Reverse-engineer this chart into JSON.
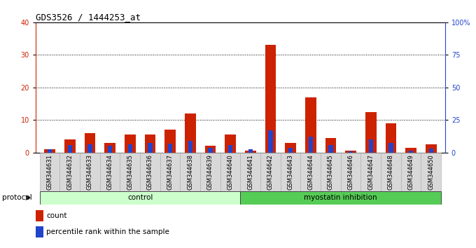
{
  "title": "GDS3526 / 1444253_at",
  "samples": [
    "GSM344631",
    "GSM344632",
    "GSM344633",
    "GSM344634",
    "GSM344635",
    "GSM344636",
    "GSM344637",
    "GSM344638",
    "GSM344639",
    "GSM344640",
    "GSM344641",
    "GSM344642",
    "GSM344643",
    "GSM344644",
    "GSM344645",
    "GSM344646",
    "GSM344647",
    "GSM344648",
    "GSM344649",
    "GSM344650"
  ],
  "count_values": [
    1,
    4,
    6,
    3,
    5.5,
    5.5,
    7,
    12,
    2,
    5.5,
    0.5,
    33,
    3,
    17,
    4.5,
    0.5,
    12.5,
    9,
    1.5,
    2.5
  ],
  "percentile_values": [
    2.5,
    6,
    6.5,
    5,
    6.5,
    7.5,
    7,
    9,
    3.5,
    6,
    2.5,
    17,
    3.5,
    12,
    5.5,
    1,
    10,
    7.5,
    1.5,
    3
  ],
  "groups": [
    {
      "label": "control",
      "start": 0,
      "end": 10,
      "color": "#ccffcc"
    },
    {
      "label": "myostatin inhibition",
      "start": 10,
      "end": 20,
      "color": "#55cc55"
    }
  ],
  "left_ylim": [
    0,
    40
  ],
  "right_ylim": [
    0,
    100
  ],
  "left_yticks": [
    0,
    10,
    20,
    30,
    40
  ],
  "right_yticks": [
    0,
    25,
    50,
    75,
    100
  ],
  "right_yticklabels": [
    "0",
    "25",
    "50",
    "75",
    "100%"
  ],
  "count_color": "#cc2200",
  "percentile_color": "#2244cc",
  "bar_width": 0.55,
  "percentile_bar_width": 0.22,
  "bg_color": "#ffffff",
  "grid_color": "#000000",
  "title_fontsize": 9,
  "tick_fontsize": 7,
  "label_fontsize": 6,
  "protocol_label": "protocol",
  "legend_count_label": "count",
  "legend_percentile_label": "percentile rank within the sample"
}
